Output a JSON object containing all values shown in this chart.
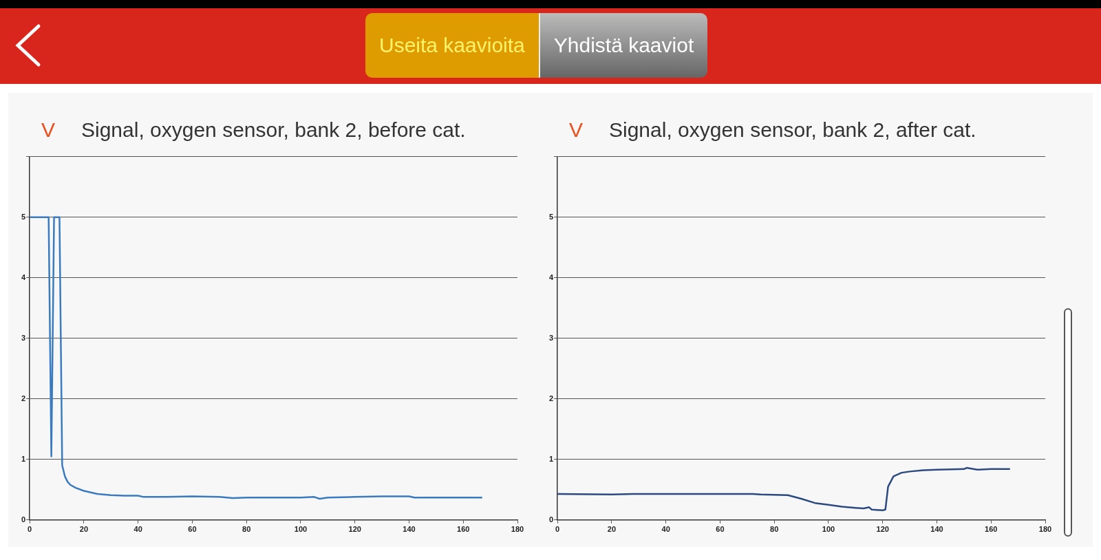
{
  "chart_data": [
    {
      "type": "line",
      "title": "Signal, oxygen sensor, bank 2, before cat.",
      "ylabel": "V",
      "annotations": [
        "Useita kaavioita",
        "Yhdistä kaaviot"
      ],
      "xlim": [
        0,
        180
      ],
      "xticks": [
        0,
        20,
        40,
        60,
        80,
        100,
        120,
        140,
        160,
        180
      ],
      "ylim": [
        0,
        6
      ],
      "yticks": [
        0,
        1,
        2,
        3,
        4,
        5,
        {
          "value": 6,
          "label": null
        }
      ],
      "grid": "y",
      "marker": "none",
      "legend": false,
      "series": [
        {
          "color": "#3a7bc0",
          "x": [
            0,
            7,
            8,
            9,
            11,
            12,
            13,
            14,
            15,
            17,
            20,
            25,
            30,
            35,
            40,
            42,
            50,
            60,
            70,
            75,
            80,
            90,
            100,
            105,
            107,
            110,
            120,
            130,
            140,
            142,
            150,
            160,
            167
          ],
          "values": [
            5,
            5,
            1.05,
            5,
            5,
            0.9,
            0.72,
            0.63,
            0.58,
            0.53,
            0.48,
            0.43,
            0.41,
            0.4,
            0.4,
            0.38,
            0.38,
            0.39,
            0.38,
            0.36,
            0.37,
            0.37,
            0.37,
            0.38,
            0.35,
            0.37,
            0.38,
            0.39,
            0.39,
            0.37,
            0.37,
            0.37,
            0.37
          ]
        }
      ]
    },
    {
      "type": "line",
      "title": "Signal, oxygen sensor, bank 2, after cat.",
      "ylabel": "V",
      "xlim": [
        0,
        180
      ],
      "xticks": [
        0,
        20,
        40,
        60,
        80,
        100,
        120,
        140,
        160,
        180
      ],
      "ylim": [
        0,
        6
      ],
      "yticks": [
        0,
        1,
        2,
        3,
        4,
        5,
        {
          "value": 6,
          "label": null
        }
      ],
      "grid": "y",
      "marker": "none",
      "legend": false,
      "series": [
        {
          "color": "#2c4a80",
          "x": [
            0,
            20,
            28,
            72,
            75,
            85,
            90,
            95,
            100,
            105,
            110,
            113,
            115,
            116,
            120,
            121,
            122,
            124,
            127,
            130,
            135,
            140,
            150,
            151,
            155,
            160,
            167
          ],
          "values": [
            0.43,
            0.42,
            0.43,
            0.43,
            0.42,
            0.41,
            0.35,
            0.28,
            0.25,
            0.22,
            0.2,
            0.19,
            0.21,
            0.17,
            0.16,
            0.17,
            0.55,
            0.72,
            0.78,
            0.8,
            0.82,
            0.83,
            0.84,
            0.86,
            0.83,
            0.84,
            0.84
          ]
        }
      ]
    }
  ]
}
